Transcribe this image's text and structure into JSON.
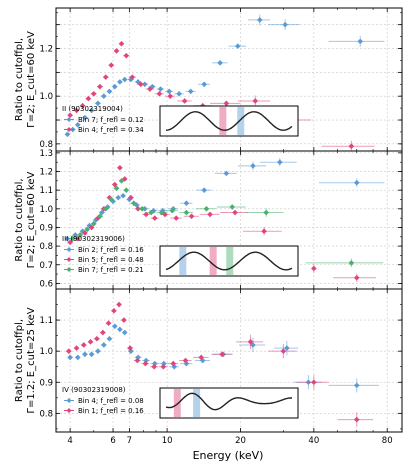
{
  "figure": {
    "xlabel": "Energy (keV)",
    "x_ticks": [
      4,
      6,
      7,
      10,
      20,
      40,
      80
    ],
    "x_tick_labels": [
      "4",
      "6",
      "7",
      "10",
      "20",
      "40",
      "80"
    ]
  },
  "chart_data": [
    {
      "type": "scatter",
      "ylabel_lines": [
        "Ratio to cutoffpl,",
        "Γ=2; E_cut=60 keV"
      ],
      "ylim": [
        0.77,
        1.37
      ],
      "y_ticks": [
        0.8,
        0.9,
        1.0,
        1.1,
        1.2,
        1.3
      ],
      "y_tick_labels": [
        "0.8",
        "",
        "1.0",
        "",
        "1.2",
        ""
      ],
      "xlim": [
        3.5,
        92
      ],
      "grid": true,
      "legend": {
        "title": "II (90302319004)",
        "entries": [
          {
            "label": "Bin 7; f_refl = 0.12",
            "color": "#5b9bd5"
          },
          {
            "label": "Bin 4; f_refl = 0.34",
            "color": "#e0467c"
          }
        ]
      },
      "series": [
        {
          "name": "Bin 7; f_refl = 0.12",
          "color": "#5b9bd5",
          "x": [
            3.9,
            4.1,
            4.3,
            4.6,
            4.9,
            5.2,
            5.5,
            5.8,
            6.1,
            6.4,
            6.7,
            7.1,
            7.6,
            8.1,
            8.7,
            9.4,
            10.2,
            11.2,
            12.5,
            14.2,
            16.5,
            19.5,
            24.0,
            30.5,
            40.0,
            62.0
          ],
          "y": [
            0.84,
            0.86,
            0.88,
            0.91,
            0.94,
            0.97,
            1.0,
            1.02,
            1.04,
            1.06,
            1.07,
            1.07,
            1.06,
            1.05,
            1.04,
            1.03,
            1.02,
            1.01,
            1.02,
            1.05,
            1.14,
            1.21,
            1.32,
            1.3,
            null,
            1.23
          ],
          "xerr": [
            0.1,
            0.1,
            0.1,
            0.15,
            0.15,
            0.15,
            0.15,
            0.15,
            0.15,
            0.15,
            0.15,
            0.2,
            0.25,
            0.25,
            0.3,
            0.35,
            0.4,
            0.5,
            0.6,
            0.8,
            1.2,
            1.6,
            2.5,
            4.5,
            0,
            16.0
          ]
        },
        {
          "name": "Bin 4; f_refl = 0.34",
          "color": "#e0467c",
          "x": [
            4.0,
            4.25,
            4.5,
            4.75,
            5.0,
            5.3,
            5.6,
            5.9,
            6.2,
            6.5,
            6.8,
            7.2,
            7.8,
            8.5,
            9.3,
            10.3,
            11.8,
            14.0,
            17.5,
            23.0,
            33.0,
            57.0
          ],
          "y": [
            0.92,
            0.94,
            0.96,
            0.99,
            1.01,
            1.04,
            1.08,
            1.13,
            1.19,
            1.22,
            1.17,
            1.08,
            1.05,
            1.03,
            1.01,
            1.0,
            0.98,
            0.96,
            0.97,
            0.98,
            0.9,
            0.79
          ],
          "xerr": [
            0.1,
            0.1,
            0.12,
            0.12,
            0.15,
            0.15,
            0.15,
            0.15,
            0.15,
            0.15,
            0.2,
            0.25,
            0.3,
            0.35,
            0.4,
            0.5,
            0.8,
            1.2,
            2.5,
            3.5,
            6.0,
            14.0
          ]
        }
      ]
    },
    {
      "type": "scatter",
      "ylabel_lines": [
        "Ratio to cutoffpl,",
        "Γ=2; E_cut=60 keV"
      ],
      "ylim": [
        0.57,
        1.31
      ],
      "y_ticks": [
        0.6,
        0.7,
        0.8,
        0.9,
        1.0,
        1.1,
        1.2,
        1.3
      ],
      "y_tick_labels": [
        "0.6",
        "0.7",
        "0.8",
        "0.9",
        "1.0",
        "1.1",
        "1.2",
        "1.3"
      ],
      "xlim": [
        3.5,
        92
      ],
      "grid": true,
      "legend": {
        "title": "III (90302319006)",
        "entries": [
          {
            "label": "Bin 2; f_refl = 0.16",
            "color": "#5b9bd5"
          },
          {
            "label": "Bin 5; f_refl = 0.48",
            "color": "#e0467c"
          },
          {
            "label": "Bin 7; f_refl = 0.21",
            "color": "#4caf6e"
          }
        ]
      },
      "series": [
        {
          "name": "Bin 2; f_refl = 0.16",
          "color": "#5b9bd5",
          "x": [
            3.9,
            4.2,
            4.5,
            4.8,
            5.1,
            5.4,
            5.7,
            6.0,
            6.3,
            6.6,
            7.0,
            7.5,
            8.1,
            8.8,
            9.6,
            10.6,
            12.0,
            14.2,
            17.5,
            22.5,
            29.0,
            60.0
          ],
          "y": [
            0.84,
            0.86,
            0.88,
            0.91,
            0.94,
            0.98,
            1.01,
            1.04,
            1.06,
            1.07,
            1.05,
            1.02,
            1.0,
            0.99,
            0.99,
            1.0,
            1.03,
            1.1,
            1.19,
            1.23,
            1.25,
            1.14
          ],
          "xerr": [
            0.1,
            0.1,
            0.12,
            0.12,
            0.15,
            0.15,
            0.15,
            0.15,
            0.15,
            0.15,
            0.2,
            0.25,
            0.3,
            0.35,
            0.4,
            0.5,
            0.7,
            1.0,
            1.8,
            3.0,
            5.0,
            18.0
          ]
        },
        {
          "name": "Bin 5; f_refl = 0.48",
          "color": "#e0467c",
          "x": [
            4.0,
            4.3,
            4.6,
            4.9,
            5.2,
            5.5,
            5.8,
            6.1,
            6.4,
            6.7,
            7.1,
            7.6,
            8.2,
            8.9,
            9.8,
            10.9,
            12.6,
            15.0,
            19.0,
            25.0,
            40.0,
            60.0
          ],
          "y": [
            0.82,
            0.84,
            0.87,
            0.9,
            0.95,
            1.0,
            1.06,
            1.13,
            1.22,
            1.16,
            1.06,
            1.0,
            0.97,
            0.95,
            0.97,
            0.95,
            0.96,
            0.97,
            0.98,
            0.88,
            0.68,
            0.63
          ],
          "xerr": [
            0.1,
            0.1,
            0.12,
            0.12,
            0.15,
            0.15,
            0.15,
            0.15,
            0.15,
            0.15,
            0.2,
            0.25,
            0.3,
            0.35,
            0.45,
            0.6,
            0.9,
            1.4,
            2.5,
            4.5,
            0,
            12.0
          ]
        },
        {
          "name": "Bin 7; f_refl = 0.21",
          "color": "#4caf6e",
          "x": [
            4.1,
            4.4,
            4.7,
            5.0,
            5.3,
            5.6,
            5.9,
            6.2,
            6.5,
            6.8,
            7.3,
            7.9,
            8.6,
            9.5,
            10.5,
            12.0,
            14.5,
            18.5,
            25.5,
            57.0
          ],
          "y": [
            0.84,
            0.86,
            0.89,
            0.92,
            0.96,
            1.0,
            1.05,
            1.11,
            1.15,
            1.1,
            1.03,
            1.0,
            0.98,
            0.98,
            0.99,
            0.98,
            1.0,
            1.01,
            0.98,
            0.71
          ],
          "xerr": [
            0.1,
            0.1,
            0.12,
            0.12,
            0.15,
            0.15,
            0.15,
            0.15,
            0.15,
            0.2,
            0.25,
            0.3,
            0.35,
            0.45,
            0.6,
            0.8,
            1.4,
            2.5,
            4.5,
            20.0
          ]
        }
      ]
    },
    {
      "type": "scatter",
      "ylabel_lines": [
        "Ratio to cutoffpl,",
        "Γ=1.2; E_cut=25 keV"
      ],
      "ylim": [
        0.74,
        1.2
      ],
      "y_ticks": [
        0.8,
        0.9,
        1.0,
        1.1
      ],
      "y_tick_labels": [
        "0.8",
        "0.9",
        "1.0",
        "1.1"
      ],
      "xlim": [
        3.5,
        92
      ],
      "grid": true,
      "legend": {
        "title": "IV (90302319008)",
        "entries": [
          {
            "label": "Bin 4; f_refl = 0.08",
            "color": "#5b9bd5"
          },
          {
            "label": "Bin 1; f_refl = 0.16",
            "color": "#e0467c"
          }
        ]
      },
      "series": [
        {
          "name": "Bin 4; f_refl = 0.08",
          "color": "#5b9bd5",
          "x": [
            4.0,
            4.3,
            4.6,
            4.9,
            5.2,
            5.5,
            5.8,
            6.1,
            6.4,
            6.7,
            7.1,
            7.6,
            8.2,
            8.9,
            9.7,
            10.7,
            12.0,
            14.0,
            17.0,
            22.5,
            31.0,
            38.0,
            60.0
          ],
          "y": [
            0.98,
            0.98,
            0.99,
            0.99,
            1.0,
            1.02,
            1.04,
            1.08,
            1.07,
            1.06,
            1.0,
            0.98,
            0.97,
            0.96,
            0.96,
            0.95,
            0.96,
            0.97,
            0.99,
            1.02,
            1.01,
            0.9,
            0.89
          ],
          "xerr": [
            0.1,
            0.1,
            0.12,
            0.12,
            0.15,
            0.15,
            0.15,
            0.15,
            0.15,
            0.15,
            0.2,
            0.25,
            0.3,
            0.35,
            0.4,
            0.5,
            0.7,
            1.0,
            1.6,
            2.8,
            3.5,
            5.0,
            14.0
          ]
        },
        {
          "name": "Bin 1; f_refl = 0.16",
          "color": "#e0467c",
          "x": [
            3.95,
            4.25,
            4.55,
            4.85,
            5.15,
            5.45,
            5.75,
            6.05,
            6.35,
            6.65,
            7.05,
            7.55,
            8.15,
            8.85,
            9.65,
            10.6,
            11.9,
            13.8,
            16.8,
            22.0,
            30.0,
            40.0,
            60.0
          ],
          "y": [
            1.0,
            1.01,
            1.02,
            1.03,
            1.04,
            1.06,
            1.09,
            1.13,
            1.15,
            1.1,
            1.01,
            0.97,
            0.96,
            0.95,
            0.95,
            0.96,
            0.97,
            0.98,
            0.99,
            1.03,
            1.0,
            0.9,
            0.78
          ],
          "xerr": [
            0.1,
            0.1,
            0.12,
            0.12,
            0.15,
            0.15,
            0.15,
            0.15,
            0.15,
            0.15,
            0.2,
            0.25,
            0.3,
            0.35,
            0.4,
            0.5,
            0.7,
            1.0,
            1.6,
            2.8,
            4.0,
            6.0,
            10.0
          ]
        }
      ]
    }
  ]
}
